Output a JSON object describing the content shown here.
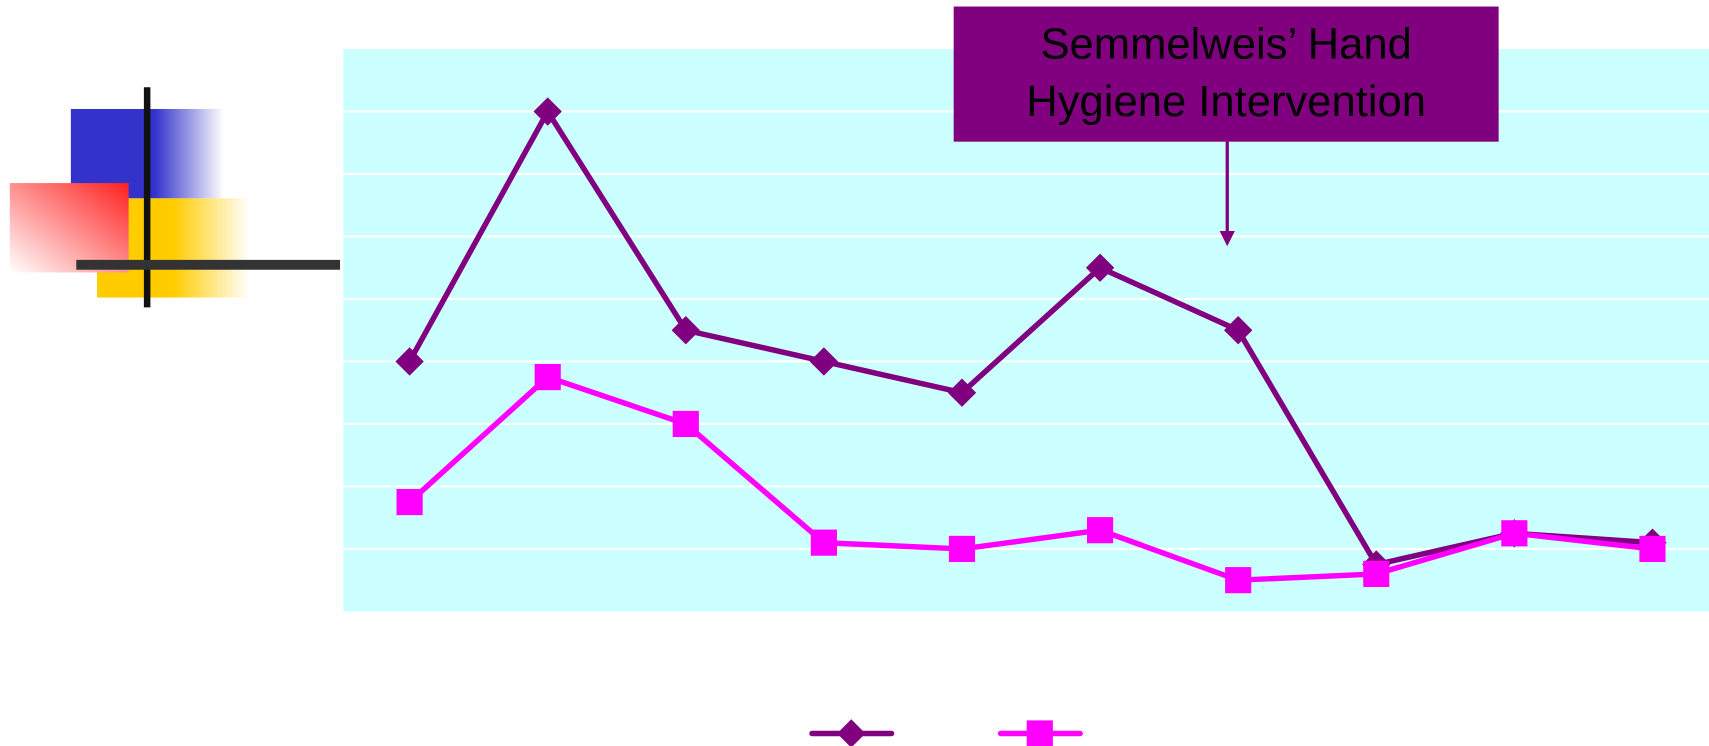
{
  "chart_data": {
    "type": "line",
    "annotation": {
      "lines": [
        "Semmelweis’ Hand",
        "Hygiene Intervention"
      ]
    },
    "categories": [
      null,
      null,
      null,
      null,
      null,
      null,
      null,
      null,
      null,
      null
    ],
    "series": [
      {
        "color": "#800080",
        "marker": "diamond",
        "values": [
          4.0,
          8.0,
          4.5,
          4.0,
          3.5,
          5.5,
          4.5,
          0.75,
          1.25,
          1.1
        ]
      },
      {
        "color": "#ff00ff",
        "marker": "square",
        "values": [
          1.75,
          3.75,
          3.0,
          1.1,
          1.0,
          1.3,
          0.5,
          0.6,
          1.25,
          1.0
        ]
      }
    ],
    "ylim": [
      0,
      9
    ],
    "gridlines": [
      1,
      2,
      3,
      4,
      5,
      6,
      7,
      8
    ],
    "background": "#ccffff"
  }
}
